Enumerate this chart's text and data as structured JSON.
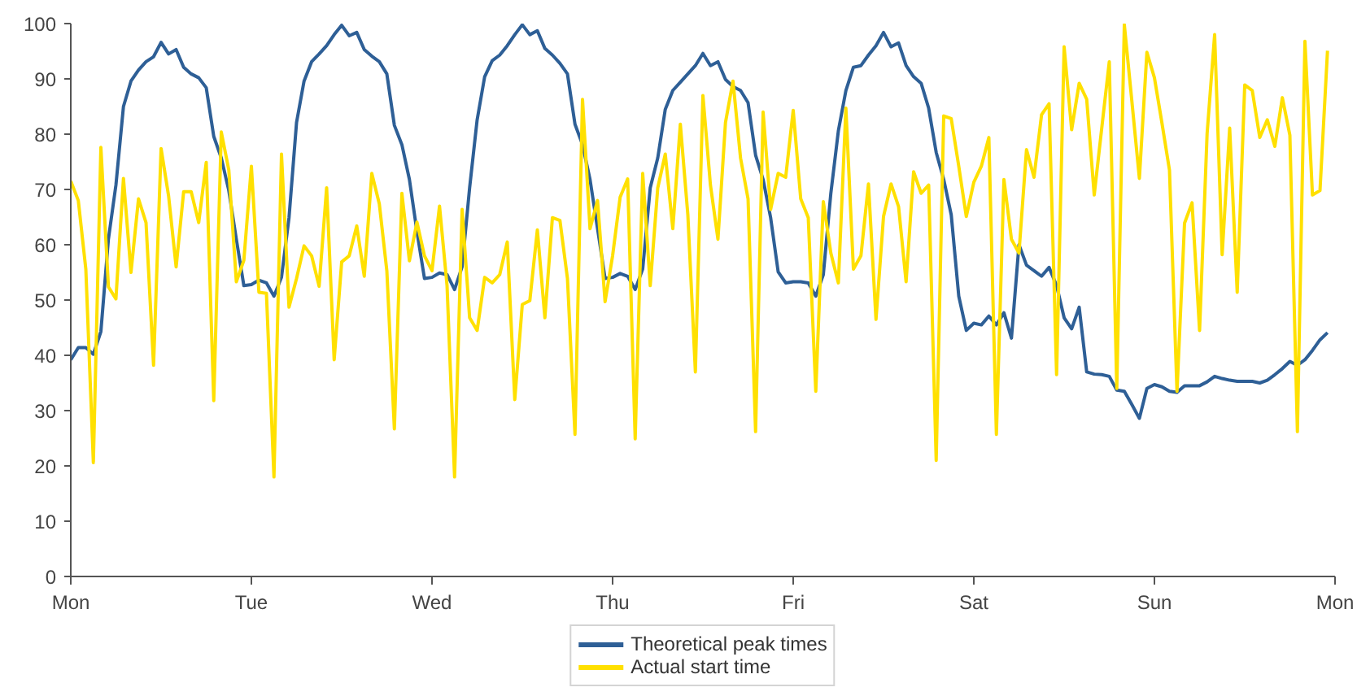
{
  "chart_data": {
    "type": "line",
    "categories": [
      "Mon",
      null,
      null,
      null,
      null,
      null,
      null,
      null,
      null,
      null,
      null,
      null,
      null,
      null,
      null,
      null,
      null,
      null,
      null,
      null,
      null,
      null,
      null,
      null,
      "Tue",
      null,
      null,
      null,
      null,
      null,
      null,
      null,
      null,
      null,
      null,
      null,
      null,
      null,
      null,
      null,
      null,
      null,
      null,
      null,
      null,
      null,
      null,
      null,
      "Wed",
      null,
      null,
      null,
      null,
      null,
      null,
      null,
      null,
      null,
      null,
      null,
      null,
      null,
      null,
      null,
      null,
      null,
      null,
      null,
      null,
      null,
      null,
      null,
      "Thu",
      null,
      null,
      null,
      null,
      null,
      null,
      null,
      null,
      null,
      null,
      null,
      null,
      null,
      null,
      null,
      null,
      null,
      null,
      null,
      null,
      null,
      null,
      null,
      "Fri",
      null,
      null,
      null,
      null,
      null,
      null,
      null,
      null,
      null,
      null,
      null,
      null,
      null,
      null,
      null,
      null,
      null,
      null,
      null,
      null,
      null,
      null,
      null,
      "Sat",
      null,
      null,
      null,
      null,
      null,
      null,
      null,
      null,
      null,
      null,
      null,
      null,
      null,
      null,
      null,
      null,
      null,
      null,
      null,
      null,
      null,
      null,
      null,
      "Sun",
      null,
      null,
      null,
      null,
      null,
      null,
      null,
      null,
      null,
      null,
      null,
      null,
      null,
      null,
      null,
      null,
      null,
      null,
      null,
      null,
      null,
      null,
      null,
      "Mon"
    ],
    "series": [
      {
        "name": "Theoretical peak times",
        "color": "#2e5f96",
        "values": [
          39.2,
          41.4,
          41.4,
          40.2,
          44.3,
          61,
          70.8,
          85,
          89.6,
          91.6,
          93.1,
          94,
          96.6,
          94.5,
          95.3,
          92.1,
          90.9,
          90.2,
          88.4,
          79.6,
          75.7,
          69.8,
          61,
          52.6,
          52.8,
          53.6,
          53.1,
          50.7,
          54.1,
          64.9,
          82.1,
          89.6,
          93.1,
          94.5,
          96,
          98,
          99.7,
          97.8,
          98.4,
          95.3,
          94.1,
          93.1,
          90.9,
          81.6,
          78.1,
          71.8,
          62.4,
          53.9,
          54.1,
          54.9,
          54.6,
          51.9,
          56,
          70.3,
          82.6,
          90.4,
          93.3,
          94.3,
          96,
          98,
          99.8,
          98,
          98.7,
          95.5,
          94.3,
          92.8,
          90.9,
          81.8,
          78.1,
          71.8,
          62.9,
          53.9,
          54.1,
          54.8,
          54.3,
          51.9,
          55.6,
          70.3,
          75.7,
          84.5,
          87.9,
          89.4,
          90.9,
          92.4,
          94.6,
          92.4,
          93.1,
          89.9,
          88.6,
          87.9,
          85.7,
          76.2,
          71.8,
          64.9,
          55.1,
          53.1,
          53.3,
          53.3,
          53.1,
          50.7,
          54.6,
          69.3,
          80.6,
          87.9,
          92.1,
          92.4,
          94.3,
          96,
          98.4,
          95.8,
          96.5,
          92.4,
          90.4,
          89.2,
          84.7,
          76.7,
          71.8,
          65.4,
          50.7,
          44.5,
          45.8,
          45.5,
          47.1,
          45.5,
          47.7,
          43.1,
          60,
          56.3,
          55.3,
          54.3,
          55.9,
          52.6,
          46.8,
          44.8,
          48.7,
          37,
          36.6,
          36.5,
          36.2,
          33.7,
          33.5,
          31.1,
          28.6,
          34,
          34.7,
          34.3,
          33.5,
          33.3,
          34.5,
          34.5,
          34.5,
          35.2,
          36.2,
          35.8,
          35.5,
          35.3,
          35.3,
          35.3,
          35,
          35.5,
          36.5,
          37.6,
          38.9,
          38.2,
          39.2,
          40.9,
          42.8,
          44.1,
          null
        ]
      },
      {
        "name": "Actual start time",
        "color": "#ffe000",
        "values": [
          71.5,
          68,
          55.6,
          20.6,
          77.6,
          52.4,
          50.2,
          72,
          55,
          68.3,
          64,
          38.2,
          77.4,
          68.8,
          56,
          69.6,
          69.6,
          64,
          74.9,
          31.8,
          80.4,
          73.5,
          53.3,
          57.2,
          74.2,
          51.4,
          51.2,
          18,
          76.4,
          48.7,
          53.9,
          59.8,
          58,
          52.5,
          70.3,
          39.2,
          56.9,
          58,
          63.4,
          54.3,
          72.9,
          67.4,
          55.3,
          26.7,
          69.3,
          57.1,
          64.1,
          58,
          55.3,
          67,
          52.6,
          18,
          66.4,
          46.8,
          44.5,
          54.1,
          53.1,
          54.6,
          60.5,
          32,
          49.2,
          49.9,
          62.7,
          46.8,
          64.9,
          64.4,
          53.9,
          25.7,
          86.3,
          62.9,
          68,
          49.7,
          58,
          68.6,
          71.9,
          24.9,
          72.9,
          52.6,
          70.3,
          76.4,
          62.9,
          81.8,
          65.4,
          37,
          87,
          70.8,
          61,
          82.1,
          89.6,
          75.7,
          68.3,
          26.2,
          84,
          66.4,
          72.9,
          72.2,
          84.3,
          68.3,
          64.9,
          33.5,
          67.8,
          58.5,
          53.1,
          84.7,
          55.6,
          58,
          71,
          46.5,
          65.1,
          71,
          66.9,
          53.3,
          73.2,
          69.3,
          70.8,
          21,
          83.3,
          82.8,
          74.2,
          65.1,
          71.3,
          74.2,
          79.4,
          25.7,
          71.8,
          61,
          58.5,
          77.2,
          72.2,
          83.5,
          85.5,
          36.5,
          95.8,
          80.8,
          89.2,
          86.3,
          69,
          81.1,
          93.1,
          34,
          99.8,
          86,
          72,
          94.8,
          90.2,
          82,
          73.5,
          33.5,
          63.9,
          67.6,
          44.5,
          80.1,
          98,
          58.2,
          81.1,
          51.4,
          88.9,
          87.9,
          79.4,
          82.6,
          77.8,
          86.6,
          79.8,
          26.2,
          96.8,
          69,
          69.8,
          95.1,
          null
        ]
      }
    ],
    "ylim": [
      0,
      100
    ],
    "yticks": [
      0,
      10,
      20,
      30,
      40,
      50,
      60,
      70,
      80,
      90,
      100
    ],
    "legend": "bottom",
    "line_style": "solid"
  }
}
